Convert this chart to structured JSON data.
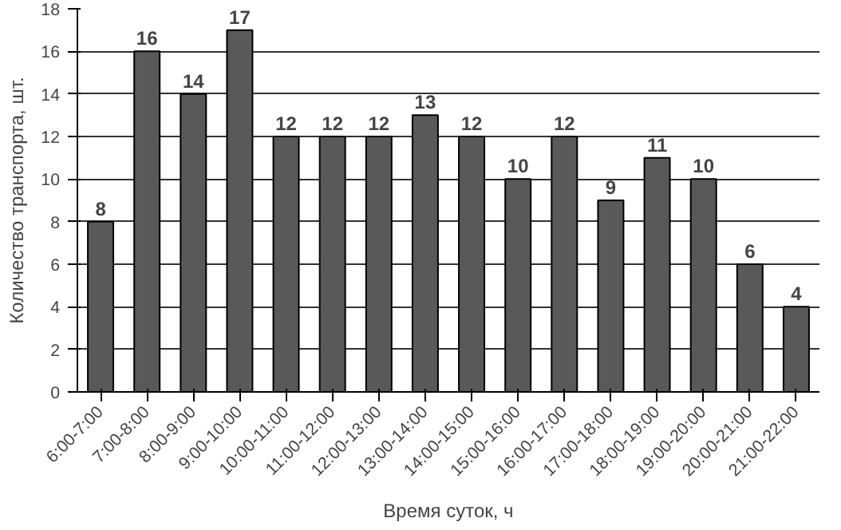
{
  "chart_data": {
    "type": "bar",
    "xlabel": "Время суток, ч",
    "ylabel": "Количество транспорта, шт.",
    "categories": [
      "6:00-7:00",
      "7:00-8:00",
      "8:00-9:00",
      "9:00-10:00",
      "10:00-11:00",
      "11:00-12:00",
      "12:00-13:00",
      "13:00-14:00",
      "14:00-15:00",
      "15:00-16:00",
      "16:00-17:00",
      "17:00-18:00",
      "18:00-19:00",
      "19:00-20:00",
      "20:00-21:00",
      "21:00-22:00"
    ],
    "values": [
      8,
      16,
      14,
      17,
      12,
      12,
      12,
      13,
      12,
      10,
      12,
      9,
      11,
      10,
      6,
      4
    ],
    "color": "#595959",
    "ylim": [
      0,
      18
    ],
    "yticks": [
      0,
      2,
      4,
      6,
      8,
      10,
      12,
      14,
      16,
      18
    ],
    "grid": "y",
    "data_labels": true
  }
}
